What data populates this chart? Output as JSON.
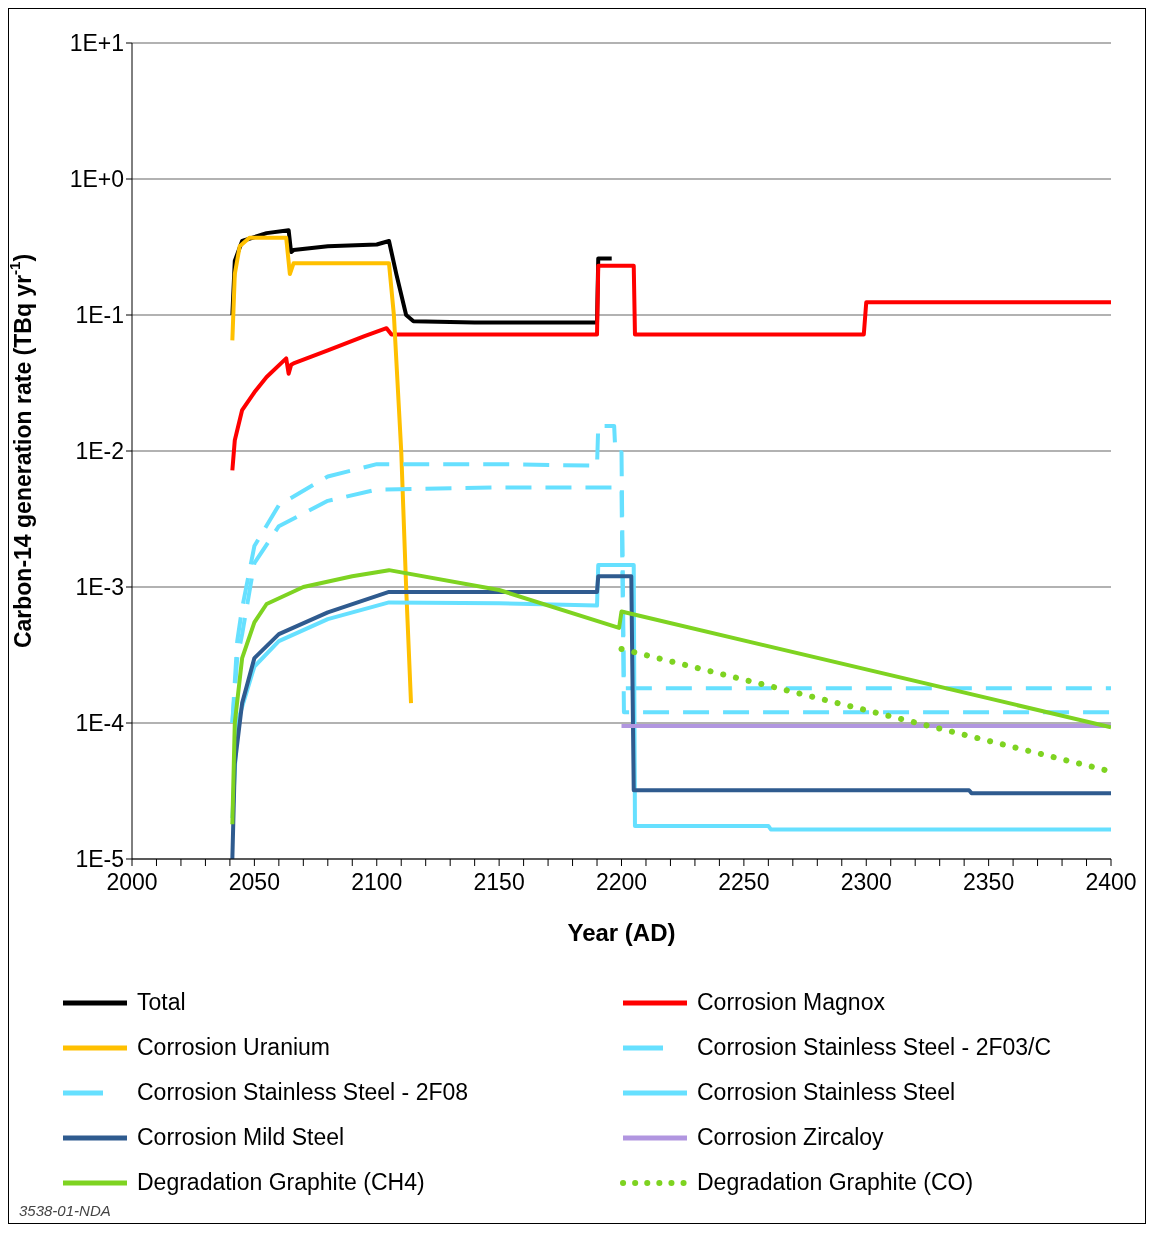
{
  "chart_data": {
    "type": "line",
    "ylabel": "Carbon-14 generation rate (TBq yr$^{-1}$)",
    "xlabel": "Year (AD)",
    "log": "y",
    "grid": "y",
    "legend": "bottom",
    "marker": "none",
    "xlim": [
      2000,
      2400
    ],
    "xticks": [
      2000,
      {
        "value": 2010,
        "label": null
      },
      {
        "value": 2020,
        "label": null
      },
      {
        "value": 2030,
        "label": null
      },
      {
        "value": 2040,
        "label": null
      },
      2050,
      {
        "value": 2060,
        "label": null
      },
      {
        "value": 2070,
        "label": null
      },
      {
        "value": 2080,
        "label": null
      },
      {
        "value": 2090,
        "label": null
      },
      2100,
      {
        "value": 2110,
        "label": null
      },
      {
        "value": 2120,
        "label": null
      },
      {
        "value": 2130,
        "label": null
      },
      {
        "value": 2140,
        "label": null
      },
      2150,
      {
        "value": 2160,
        "label": null
      },
      {
        "value": 2170,
        "label": null
      },
      {
        "value": 2180,
        "label": null
      },
      {
        "value": 2190,
        "label": null
      },
      2200,
      {
        "value": 2210,
        "label": null
      },
      {
        "value": 2220,
        "label": null
      },
      {
        "value": 2230,
        "label": null
      },
      {
        "value": 2240,
        "label": null
      },
      2250,
      {
        "value": 2260,
        "label": null
      },
      {
        "value": 2270,
        "label": null
      },
      {
        "value": 2280,
        "label": null
      },
      {
        "value": 2290,
        "label": null
      },
      2300,
      {
        "value": 2310,
        "label": null
      },
      {
        "value": 2320,
        "label": null
      },
      {
        "value": 2330,
        "label": null
      },
      {
        "value": 2340,
        "label": null
      },
      2350,
      {
        "value": 2360,
        "label": null
      },
      {
        "value": 2370,
        "label": null
      },
      {
        "value": 2380,
        "label": null
      },
      {
        "value": 2390,
        "label": null
      },
      2400
    ],
    "ylim": [
      1e-05,
      10
    ],
    "yticks": [
      {
        "value": 1e-05,
        "label": "1E-5"
      },
      {
        "value": 0.0001,
        "label": "1E-4"
      },
      {
        "value": 0.001,
        "label": "1E-3"
      },
      {
        "value": 0.01,
        "label": "1E-2"
      },
      {
        "value": 0.1,
        "label": "1E-1"
      },
      {
        "value": 1,
        "label": "1E+0"
      },
      {
        "value": 10,
        "label": "1E+1"
      }
    ],
    "annotations": [
      "3538-01-NDA"
    ],
    "series": [
      {
        "name": "Total",
        "color": "#000000",
        "line_style": "solid",
        "x": [
          2041,
          2042,
          2045,
          2055,
          2064,
          2065,
          2066,
          2080,
          2100,
          2105,
          2108,
          2112,
          2115,
          2140,
          2190,
          2190.5,
          2196
        ],
        "values": [
          0.1,
          0.25,
          0.35,
          0.4,
          0.42,
          0.29,
          0.3,
          0.32,
          0.33,
          0.35,
          0.2,
          0.1,
          0.09,
          0.088,
          0.088,
          0.26,
          0.26
        ]
      },
      {
        "name": "Corrosion Magnox",
        "color": "#ff0000",
        "line_style": "solid",
        "x": [
          2041,
          2042,
          2045,
          2050,
          2055,
          2063,
          2064,
          2065,
          2066,
          2080,
          2095,
          2104,
          2106,
          2190,
          2190.5,
          2205,
          2205.5,
          2299,
          2300,
          2400
        ],
        "values": [
          0.0072,
          0.012,
          0.02,
          0.027,
          0.035,
          0.048,
          0.037,
          0.043,
          0.044,
          0.055,
          0.07,
          0.08,
          0.072,
          0.072,
          0.23,
          0.23,
          0.072,
          0.072,
          0.124,
          0.124
        ]
      },
      {
        "name": "Corrosion Uranium",
        "color": "#ffc000",
        "line_style": "solid",
        "x": [
          2041,
          2042,
          2044,
          2048,
          2063,
          2064.5,
          2066,
          2105,
          2107,
          2110,
          2112,
          2114
        ],
        "values": [
          0.065,
          0.2,
          0.32,
          0.37,
          0.37,
          0.2,
          0.24,
          0.24,
          0.1,
          0.01,
          0.001,
          0.00014
        ]
      },
      {
        "name": "Corrosion Stainless Steel - 2F03/C",
        "color": "#66e0ff",
        "line_style": "dashed",
        "x": [
          2041,
          2043,
          2045,
          2050,
          2060,
          2080,
          2100,
          2150,
          2190,
          2190.5,
          2197,
          2197.5,
          2200,
          2201,
          2400
        ],
        "values": [
          0.0001,
          0.0004,
          0.0007,
          0.002,
          0.004,
          0.0065,
          0.008,
          0.008,
          0.0078,
          0.0153,
          0.0153,
          0.0098,
          0.0098,
          0.00018,
          0.00018
        ]
      },
      {
        "name": "Corrosion Stainless Steel - 2F08",
        "color": "#66e0ff",
        "line_style": "dashed",
        "x": [
          2041,
          2043,
          2045,
          2050,
          2060,
          2080,
          2100,
          2150,
          2200,
          2201,
          2400
        ],
        "values": [
          0.0001,
          0.0003,
          0.00045,
          0.0015,
          0.0028,
          0.0043,
          0.0052,
          0.0054,
          0.0054,
          0.00012,
          0.00012
        ]
      },
      {
        "name": "Corrosion Stainless Steel",
        "color": "#66e0ff",
        "line_style": "solid",
        "x": [
          2041,
          2043,
          2050,
          2060,
          2080,
          2105,
          2150,
          2190,
          2190.5,
          2205,
          2205.5,
          2260,
          2261,
          2400
        ],
        "values": [
          2e-05,
          0.0001,
          0.00026,
          0.0004,
          0.00058,
          0.00077,
          0.00076,
          0.00073,
          0.00145,
          0.00145,
          1.75e-05,
          1.75e-05,
          1.65e-05,
          1.65e-05
        ]
      },
      {
        "name": "Corrosion Mild Steel",
        "color": "#2f5b8f",
        "line_style": "solid",
        "x": [
          2041,
          2042,
          2045,
          2050,
          2060,
          2080,
          2105,
          2190,
          2190.5,
          2204,
          2205,
          2342,
          2343,
          2400
        ],
        "values": [
          1e-05,
          5e-05,
          0.00014,
          0.0003,
          0.00045,
          0.00065,
          0.00092,
          0.00092,
          0.0012,
          0.0012,
          3.2e-05,
          3.2e-05,
          3.05e-05,
          3.05e-05
        ]
      },
      {
        "name": "Corrosion Zircaloy",
        "color": "#b196e0",
        "line_style": "solid",
        "x": [
          2200,
          2400
        ],
        "values": [
          9.5e-05,
          9.5e-05
        ]
      },
      {
        "name": "Degradation Graphite (CH4)",
        "color": "#7ed321",
        "line_style": "solid",
        "x": [
          2041,
          2042,
          2045,
          2050,
          2055,
          2070,
          2090,
          2105,
          2150,
          2199,
          2200,
          2400
        ],
        "values": [
          1.8e-05,
          0.0001,
          0.0003,
          0.00055,
          0.00075,
          0.001,
          0.0012,
          0.00133,
          0.00095,
          0.0005,
          0.00066,
          9.3e-05
        ]
      },
      {
        "name": "Degradation Graphite (CO)",
        "color": "#7ed321",
        "line_style": "dotted",
        "x": [
          2200,
          2400
        ],
        "values": [
          0.00035,
          4.4e-05
        ]
      }
    ]
  }
}
